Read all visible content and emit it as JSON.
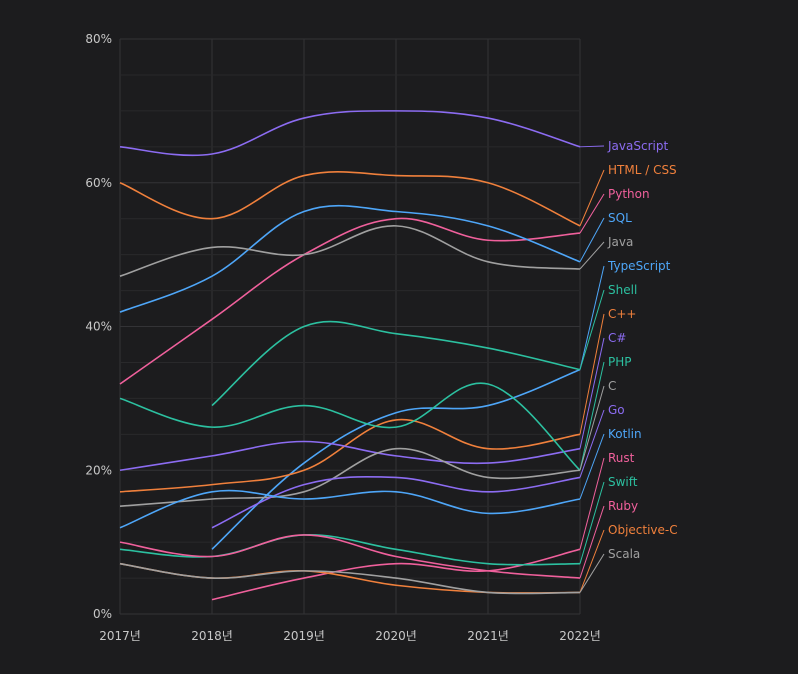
{
  "chart_data": {
    "type": "line",
    "title": "",
    "xlabel": "",
    "ylabel": "",
    "x": [
      "2017년",
      "2018년",
      "2019년",
      "2020년",
      "2021년",
      "2022년"
    ],
    "ylim": [
      0,
      80
    ],
    "yticks": [
      "0%",
      "20%",
      "40%",
      "60%",
      "80%"
    ],
    "grid": true,
    "legend": "right-end",
    "series": [
      {
        "name": "JavaScript",
        "color": "#8c6cf2",
        "values": [
          65,
          64,
          69,
          70,
          69,
          65
        ]
      },
      {
        "name": "HTML / CSS",
        "color": "#f0803c",
        "values": [
          60,
          55,
          61,
          61,
          60,
          54
        ]
      },
      {
        "name": "Python",
        "color": "#f0609c",
        "values": [
          32,
          41,
          50,
          55,
          52,
          53
        ]
      },
      {
        "name": "SQL",
        "color": "#4ea6f8",
        "values": [
          42,
          47,
          56,
          56,
          54,
          49
        ]
      },
      {
        "name": "Java",
        "color": "#a0a0a0",
        "values": [
          47,
          51,
          50,
          54,
          49,
          48
        ]
      },
      {
        "name": "TypeScript",
        "color": "#4ea6f8",
        "values": [
          null,
          9,
          21,
          28,
          29,
          34
        ]
      },
      {
        "name": "Shell",
        "color": "#2cc0a0",
        "values": [
          null,
          29,
          40,
          39,
          37,
          34
        ]
      },
      {
        "name": "C++",
        "color": "#f0803c",
        "values": [
          17,
          18,
          20,
          27,
          23,
          25
        ]
      },
      {
        "name": "C#",
        "color": "#8c6cf2",
        "values": [
          20,
          22,
          24,
          22,
          21,
          23
        ]
      },
      {
        "name": "PHP",
        "color": "#2cc0a0",
        "values": [
          30,
          26,
          29,
          26,
          32,
          20
        ]
      },
      {
        "name": "C",
        "color": "#a0a0a0",
        "values": [
          15,
          16,
          17,
          23,
          19,
          20
        ]
      },
      {
        "name": "Go",
        "color": "#8c6cf2",
        "values": [
          null,
          12,
          18,
          19,
          17,
          19
        ]
      },
      {
        "name": "Kotlin",
        "color": "#4ea6f8",
        "values": [
          12,
          17,
          16,
          17,
          14,
          16
        ]
      },
      {
        "name": "Rust",
        "color": "#f0609c",
        "values": [
          null,
          2,
          5,
          7,
          6,
          9
        ]
      },
      {
        "name": "Swift",
        "color": "#2cc0a0",
        "values": [
          9,
          8,
          11,
          9,
          7,
          7
        ]
      },
      {
        "name": "Ruby",
        "color": "#f0609c",
        "values": [
          10,
          8,
          11,
          8,
          6,
          5
        ]
      },
      {
        "name": "Objective-C",
        "color": "#f0803c",
        "values": [
          7,
          5,
          6,
          4,
          3,
          3
        ]
      },
      {
        "name": "Scala",
        "color": "#a0a0a0",
        "values": [
          7,
          5,
          6,
          5,
          3,
          3
        ]
      }
    ]
  }
}
